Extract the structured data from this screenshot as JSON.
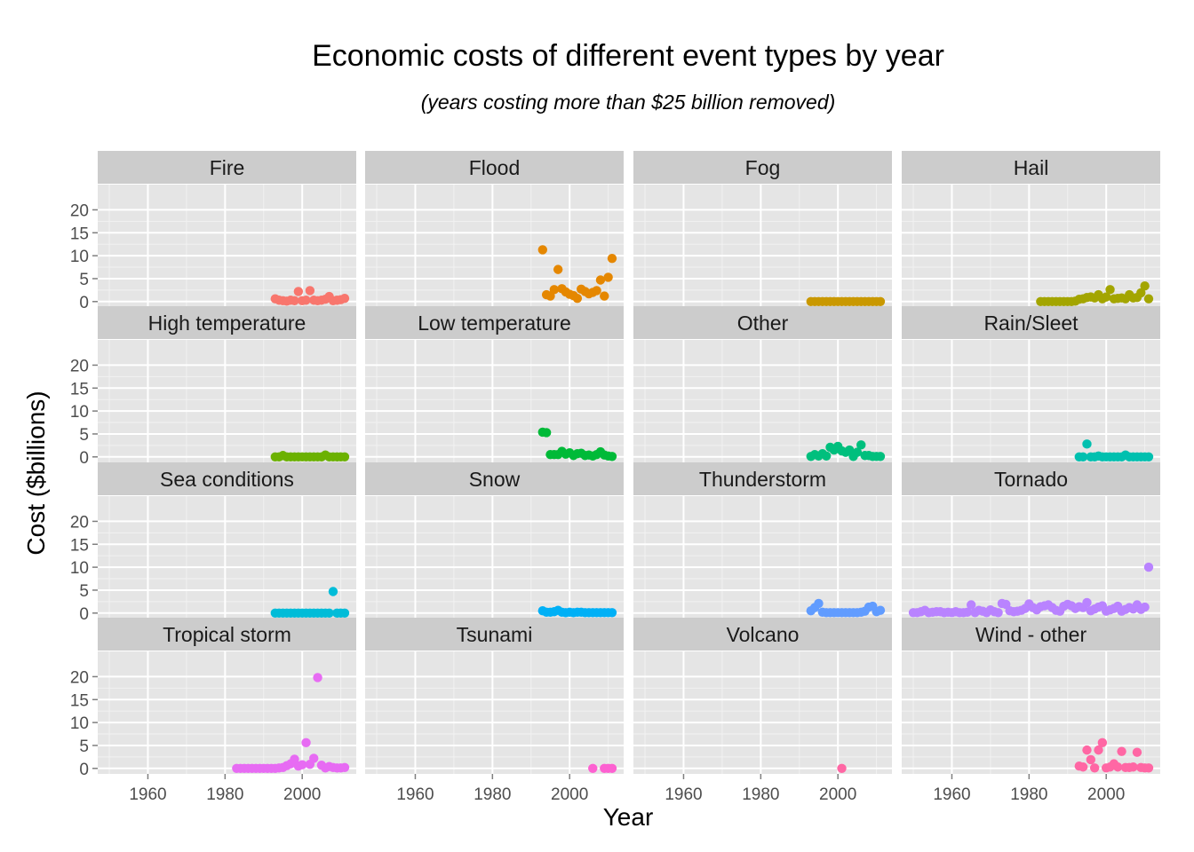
{
  "chart_data": {
    "type": "scatter",
    "title": "Economic costs of different event types by year",
    "subtitle": "(years costing more than $25 billion removed)",
    "xlabel": "Year",
    "ylabel": "Cost ($billions)",
    "xlim": [
      1947,
      2014
    ],
    "ylim": [
      -1.2,
      25.5
    ],
    "x_ticks": [
      1960,
      1980,
      2000
    ],
    "y_ticks": [
      0,
      5,
      10,
      15,
      20
    ],
    "grid": true,
    "legend": "none",
    "facets": [
      {
        "name": "Fire",
        "color": "#F8766D",
        "x": [
          1993,
          1994,
          1995,
          1996,
          1997,
          1998,
          1999,
          2000,
          2001,
          2002,
          2003,
          2004,
          2005,
          2006,
          2007,
          2008,
          2009,
          2010,
          2011
        ],
        "y": [
          0.6,
          0.3,
          0.2,
          0.1,
          0.3,
          0.2,
          2.2,
          0.2,
          0.3,
          2.4,
          0.3,
          0.2,
          0.3,
          0.5,
          1.1,
          0.2,
          0.3,
          0.4,
          0.7
        ]
      },
      {
        "name": "Flood",
        "color": "#E58700",
        "x": [
          1993,
          1994,
          1995,
          1996,
          1997,
          1998,
          1999,
          2000,
          2001,
          2002,
          2003,
          2004,
          2005,
          2006,
          2007,
          2008,
          2009,
          2010,
          2011
        ],
        "y": [
          11.3,
          1.5,
          1.2,
          2.6,
          7.0,
          2.8,
          2.1,
          1.6,
          1.3,
          0.7,
          2.7,
          2.2,
          1.7,
          2.0,
          2.4,
          4.7,
          1.2,
          5.3,
          9.4
        ]
      },
      {
        "name": "Fog",
        "color": "#C99800",
        "x": [
          1993,
          1994,
          1995,
          1996,
          1997,
          1998,
          1999,
          2000,
          2001,
          2002,
          2003,
          2004,
          2005,
          2006,
          2007,
          2008,
          2009,
          2010,
          2011
        ],
        "y": [
          0,
          0,
          0,
          0,
          0,
          0,
          0,
          0,
          0,
          0,
          0,
          0,
          0,
          0,
          0,
          0,
          0,
          0,
          0
        ]
      },
      {
        "name": "Hail",
        "color": "#A3A500",
        "x": [
          1983,
          1984,
          1985,
          1986,
          1987,
          1988,
          1989,
          1990,
          1991,
          1992,
          1993,
          1994,
          1995,
          1996,
          1997,
          1998,
          1999,
          2000,
          2001,
          2002,
          2003,
          2004,
          2005,
          2006,
          2007,
          2008,
          2009,
          2010,
          2011
        ],
        "y": [
          0,
          0,
          0,
          0,
          0,
          0,
          0,
          0,
          0,
          0.1,
          0.5,
          0.6,
          0.9,
          1.0,
          0.8,
          1.5,
          0.6,
          1.0,
          2.6,
          0.6,
          0.7,
          0.8,
          0.6,
          1.5,
          0.8,
          0.9,
          1.9,
          3.4,
          0.6
        ]
      },
      {
        "name": "High temperature",
        "color": "#6BB100",
        "x": [
          1993,
          1994,
          1995,
          1996,
          1997,
          1998,
          1999,
          2000,
          2001,
          2002,
          2003,
          2004,
          2005,
          2006,
          2007,
          2008,
          2009,
          2010,
          2011
        ],
        "y": [
          0,
          0,
          0.3,
          0,
          0,
          0,
          0,
          0,
          0,
          0,
          0,
          0,
          0,
          0.4,
          0,
          0,
          0,
          0,
          0
        ]
      },
      {
        "name": "Low temperature",
        "color": "#00BA38",
        "x": [
          1993,
          1994,
          1995,
          1996,
          1997,
          1998,
          1999,
          2000,
          2001,
          2002,
          2003,
          2004,
          2005,
          2006,
          2007,
          2008,
          2009,
          2010,
          2011
        ],
        "y": [
          5.4,
          5.3,
          0.5,
          0.5,
          0.5,
          1.2,
          0.6,
          0.9,
          0.3,
          0.7,
          0.8,
          0.3,
          0.4,
          0.2,
          0.5,
          1.1,
          0.4,
          0.2,
          0.1
        ]
      },
      {
        "name": "Other",
        "color": "#00BF7D",
        "x": [
          1993,
          1994,
          1995,
          1996,
          1997,
          1998,
          1999,
          2000,
          2001,
          2002,
          2003,
          2004,
          2005,
          2006,
          2007,
          2008,
          2009,
          2010,
          2011
        ],
        "y": [
          0.1,
          0.5,
          0.2,
          0.7,
          0.2,
          2.1,
          1.5,
          2.3,
          1.3,
          1.0,
          1.5,
          0.1,
          1.0,
          2.6,
          0.3,
          0.3,
          0.1,
          0.1,
          0.1
        ]
      },
      {
        "name": "Rain/Sleet",
        "color": "#00C0AF",
        "x": [
          1993,
          1994,
          1995,
          1996,
          1997,
          1998,
          1999,
          2000,
          2001,
          2002,
          2003,
          2004,
          2005,
          2006,
          2007,
          2008,
          2009,
          2010,
          2011
        ],
        "y": [
          0,
          0,
          2.8,
          0,
          0,
          0.2,
          0,
          0,
          0,
          0,
          0,
          0,
          0.4,
          0,
          0,
          0,
          0,
          0,
          0
        ]
      },
      {
        "name": "Sea conditions",
        "color": "#00BCD8",
        "x": [
          1993,
          1994,
          1995,
          1996,
          1997,
          1998,
          1999,
          2000,
          2001,
          2002,
          2003,
          2004,
          2005,
          2006,
          2007,
          2008,
          2009,
          2010,
          2011
        ],
        "y": [
          0,
          0,
          0,
          0,
          0,
          0,
          0,
          0,
          0,
          0,
          0,
          0,
          0,
          0,
          0,
          4.7,
          0,
          0,
          0
        ]
      },
      {
        "name": "Snow",
        "color": "#00B0F6",
        "x": [
          1993,
          1994,
          1995,
          1996,
          1997,
          1998,
          1999,
          2000,
          2001,
          2002,
          2003,
          2004,
          2005,
          2006,
          2007,
          2008,
          2009,
          2010,
          2011
        ],
        "y": [
          0.5,
          0.2,
          0.2,
          0.3,
          0.6,
          0.2,
          0.1,
          0.2,
          0.1,
          0.2,
          0.2,
          0.1,
          0.1,
          0.1,
          0.1,
          0.1,
          0.1,
          0.1,
          0.1
        ]
      },
      {
        "name": "Thunderstorm",
        "color": "#619CFF",
        "x": [
          1993,
          1994,
          1995,
          1996,
          1997,
          1998,
          1999,
          2000,
          2001,
          2002,
          2003,
          2004,
          2005,
          2006,
          2007,
          2008,
          2009,
          2010,
          2011
        ],
        "y": [
          0.5,
          1.2,
          2.1,
          0.2,
          0.1,
          0.1,
          0.1,
          0.1,
          0.1,
          0.1,
          0.1,
          0.1,
          0.1,
          0.2,
          0.4,
          1.3,
          1.5,
          0.3,
          0.6
        ]
      },
      {
        "name": "Tornado",
        "color": "#B983FF",
        "x": [
          1950,
          1951,
          1952,
          1953,
          1954,
          1955,
          1956,
          1957,
          1958,
          1959,
          1960,
          1961,
          1962,
          1963,
          1964,
          1965,
          1966,
          1967,
          1968,
          1969,
          1970,
          1971,
          1972,
          1973,
          1974,
          1975,
          1976,
          1977,
          1978,
          1979,
          1980,
          1981,
          1982,
          1983,
          1984,
          1985,
          1986,
          1987,
          1988,
          1989,
          1990,
          1991,
          1992,
          1993,
          1994,
          1995,
          1996,
          1997,
          1998,
          1999,
          2000,
          2001,
          2002,
          2003,
          2004,
          2005,
          2006,
          2007,
          2008,
          2009,
          2010,
          2011
        ],
        "y": [
          0.1,
          0.1,
          0.3,
          0.6,
          0.1,
          0.2,
          0.3,
          0.3,
          0.1,
          0.2,
          0.1,
          0.3,
          0.1,
          0.1,
          0.2,
          1.8,
          0.1,
          0.6,
          0.4,
          0.1,
          0.7,
          0.3,
          0.1,
          2.1,
          1.9,
          0.5,
          0.3,
          0.4,
          0.6,
          1.0,
          2.0,
          1.2,
          0.7,
          1.4,
          1.6,
          1.8,
          1.2,
          0.6,
          0.4,
          1.5,
          1.9,
          1.6,
          1.0,
          1.4,
          1.2,
          2.3,
          0.5,
          0.9,
          1.3,
          1.6,
          0.4,
          0.7,
          1.0,
          1.5,
          0.4,
          0.8,
          1.2,
          0.9,
          1.8,
          0.8,
          1.3,
          10.0
        ]
      },
      {
        "name": "Tropical storm",
        "color": "#E76BF3",
        "x": [
          1983,
          1984,
          1985,
          1986,
          1987,
          1988,
          1989,
          1990,
          1991,
          1992,
          1993,
          1994,
          1995,
          1996,
          1997,
          1998,
          1999,
          2000,
          2001,
          2002,
          2003,
          2004,
          2005,
          2006,
          2007,
          2008,
          2009,
          2010,
          2011
        ],
        "y": [
          0,
          0,
          0,
          0,
          0,
          0,
          0,
          0,
          0,
          0,
          0,
          0.1,
          0.2,
          0.6,
          1.0,
          2.0,
          0.5,
          0.8,
          5.6,
          0.9,
          2.2,
          19.8,
          0.7,
          0.1,
          0.4,
          0.2,
          0.1,
          0.1,
          0.2
        ]
      },
      {
        "name": "Tsunami",
        "color": "#FD61D1",
        "x": [
          2006,
          2009,
          2010,
          2011
        ],
        "y": [
          0,
          0,
          0,
          0
        ]
      },
      {
        "name": "Volcano",
        "color": "#FF67A4",
        "x": [
          2001
        ],
        "y": [
          0
        ]
      },
      {
        "name": "Wind - other",
        "color": "#FF67A4",
        "x": [
          1993,
          1994,
          1995,
          1996,
          1997,
          1998,
          1999,
          2000,
          2001,
          2002,
          2003,
          2004,
          2005,
          2006,
          2007,
          2008,
          2009,
          2010,
          2011
        ],
        "y": [
          0.5,
          0.3,
          4.0,
          1.9,
          0.1,
          4.0,
          5.6,
          0.1,
          0.3,
          1.0,
          0.3,
          3.7,
          0.2,
          0.2,
          0.3,
          3.5,
          0.2,
          0.1,
          0.1
        ]
      }
    ]
  }
}
